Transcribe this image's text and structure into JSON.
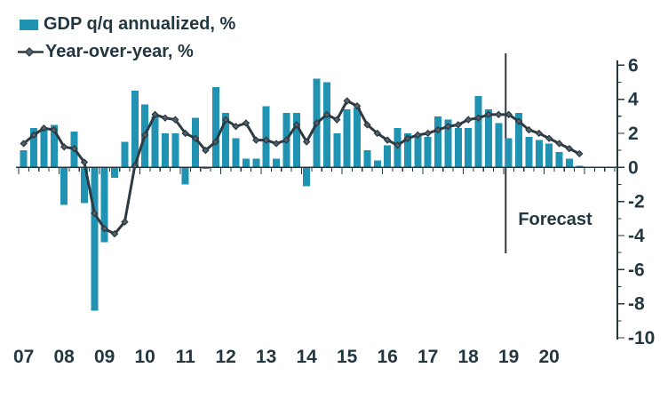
{
  "legend": {
    "bar_label": "GDP q/q annualized, %",
    "line_label": "Year-over-year, %"
  },
  "forecast": {
    "label": "Forecast"
  },
  "colors": {
    "bar": "#2093B3",
    "line": "#2E3A41",
    "marker_fill": "#55626A",
    "text": "#233740",
    "axis": "#233740"
  },
  "chart_data": {
    "type": "bar+line combo, quarterly time series",
    "title": "",
    "xlabel": "",
    "ylabel": "",
    "ylim": [
      -10,
      6
    ],
    "y_ticks": [
      6,
      4,
      2,
      0,
      -2,
      -4,
      -6,
      -8,
      -10
    ],
    "y_minor_ticks": [
      5,
      3,
      1,
      -1,
      -3,
      -5,
      -7,
      -9
    ],
    "y_axis_side": "right",
    "grid": false,
    "legend_position": "top-left",
    "forecast_divider_after": "18Q4",
    "forecast_annotation": "Forecast",
    "years": [
      "07",
      "08",
      "09",
      "10",
      "11",
      "12",
      "13",
      "14",
      "15",
      "16",
      "17",
      "18",
      "19",
      "20"
    ],
    "categories": [
      "07Q1",
      "07Q2",
      "07Q3",
      "07Q4",
      "08Q1",
      "08Q2",
      "08Q3",
      "08Q4",
      "09Q1",
      "09Q2",
      "09Q3",
      "09Q4",
      "10Q1",
      "10Q2",
      "10Q3",
      "10Q4",
      "11Q1",
      "11Q2",
      "11Q3",
      "11Q4",
      "12Q1",
      "12Q2",
      "12Q3",
      "12Q4",
      "13Q1",
      "13Q2",
      "13Q3",
      "13Q4",
      "14Q1",
      "14Q2",
      "14Q3",
      "14Q4",
      "15Q1",
      "15Q2",
      "15Q3",
      "15Q4",
      "16Q1",
      "16Q2",
      "16Q3",
      "16Q4",
      "17Q1",
      "17Q2",
      "17Q3",
      "17Q4",
      "18Q1",
      "18Q2",
      "18Q3",
      "18Q4",
      "19Q1",
      "19Q2",
      "19Q3",
      "19Q4",
      "20Q1",
      "20Q2",
      "20Q3",
      "20Q4"
    ],
    "series": [
      {
        "name": "GDP q/q annualized, %",
        "type": "bar",
        "values": [
          1.0,
          2.3,
          2.2,
          2.5,
          -2.2,
          2.1,
          -2.1,
          -8.4,
          -4.4,
          -0.6,
          1.5,
          4.5,
          3.7,
          3.0,
          2.0,
          2.0,
          -1.0,
          2.9,
          -0.1,
          4.7,
          3.2,
          1.7,
          0.5,
          0.5,
          3.6,
          0.5,
          3.2,
          3.2,
          -1.1,
          5.2,
          5.0,
          2.0,
          3.4,
          3.5,
          1.0,
          0.4,
          1.3,
          2.3,
          2.0,
          1.9,
          1.8,
          3.0,
          2.8,
          2.3,
          2.3,
          4.2,
          3.4,
          2.6,
          1.7,
          3.2,
          1.8,
          1.6,
          1.4,
          0.9,
          0.5,
          0.1
        ]
      },
      {
        "name": "Year-over-year, %",
        "type": "line",
        "values": [
          1.4,
          1.9,
          2.3,
          2.2,
          1.2,
          1.1,
          0.3,
          -2.7,
          -3.6,
          -3.9,
          -3.2,
          0.1,
          1.9,
          3.1,
          2.9,
          2.8,
          2.0,
          1.7,
          1.0,
          1.5,
          2.8,
          2.4,
          2.6,
          1.6,
          1.6,
          1.4,
          1.6,
          2.5,
          1.5,
          2.6,
          3.1,
          2.8,
          3.9,
          3.6,
          2.5,
          2.0,
          1.6,
          1.3,
          1.7,
          1.9,
          2.0,
          2.2,
          2.4,
          2.5,
          2.8,
          2.9,
          3.1,
          3.1,
          3.1,
          2.7,
          2.2,
          2.0,
          1.7,
          1.4,
          1.1,
          0.8
        ]
      }
    ]
  }
}
